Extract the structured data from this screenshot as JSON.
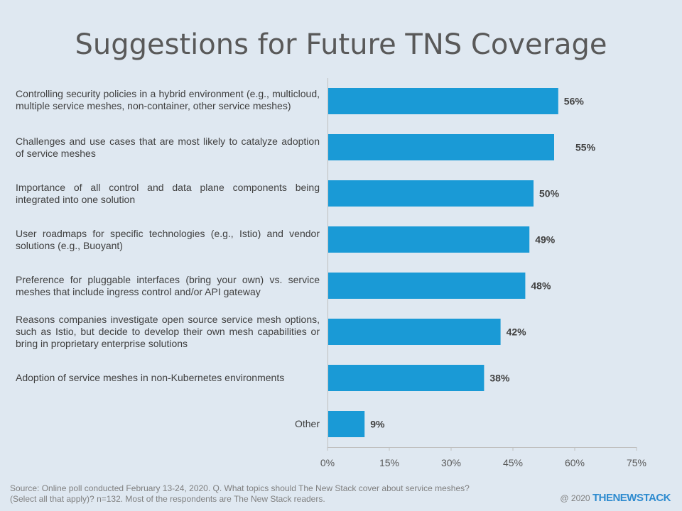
{
  "chart_data": {
    "type": "bar",
    "orientation": "horizontal",
    "title": "Suggestions for Future TNS Coverage",
    "categories": [
      "Controlling security policies in a hybrid environment (e.g., multicloud, multiple service meshes, non-container, other service meshes)",
      "Challenges and use cases that are most likely to catalyze adoption of service meshes",
      "Importance of all control and data plane components being integrated into one solution",
      "User roadmaps for specific technologies (e.g., Istio) and vendor solutions (e.g., Buoyant)",
      "Preference for pluggable interfaces (bring your own) vs. service meshes that include ingress control and/or API gateway",
      "Reasons companies investigate open source service mesh options, such as Istio, but decide to develop their own mesh capabilities or bring in proprietary enterprise solutions",
      "Adoption of service meshes in non-Kubernetes environments",
      "Other"
    ],
    "values": [
      56,
      55,
      50,
      49,
      48,
      42,
      38,
      9
    ],
    "value_labels": [
      "56%",
      "55%",
      "50%",
      "49%",
      "48%",
      "42%",
      "38%",
      "9%"
    ],
    "xlim": [
      0,
      75
    ],
    "ticks": [
      0,
      15,
      30,
      45,
      60,
      75
    ],
    "tick_labels": [
      "0%",
      "15%",
      "30%",
      "45%",
      "60%",
      "75%"
    ],
    "bar_color": "#1a9ad6",
    "grid": false,
    "legend": "none"
  },
  "footer": {
    "source_line1": "Source: Online poll conducted February 13-24, 2020. Q. What topics should The New Stack cover about service meshes?",
    "source_line2": "(Select all that apply)? n=132. Most of the respondents are The New Stack readers.",
    "copyright": "@ 2020",
    "brand": "THENEWSTACK"
  }
}
